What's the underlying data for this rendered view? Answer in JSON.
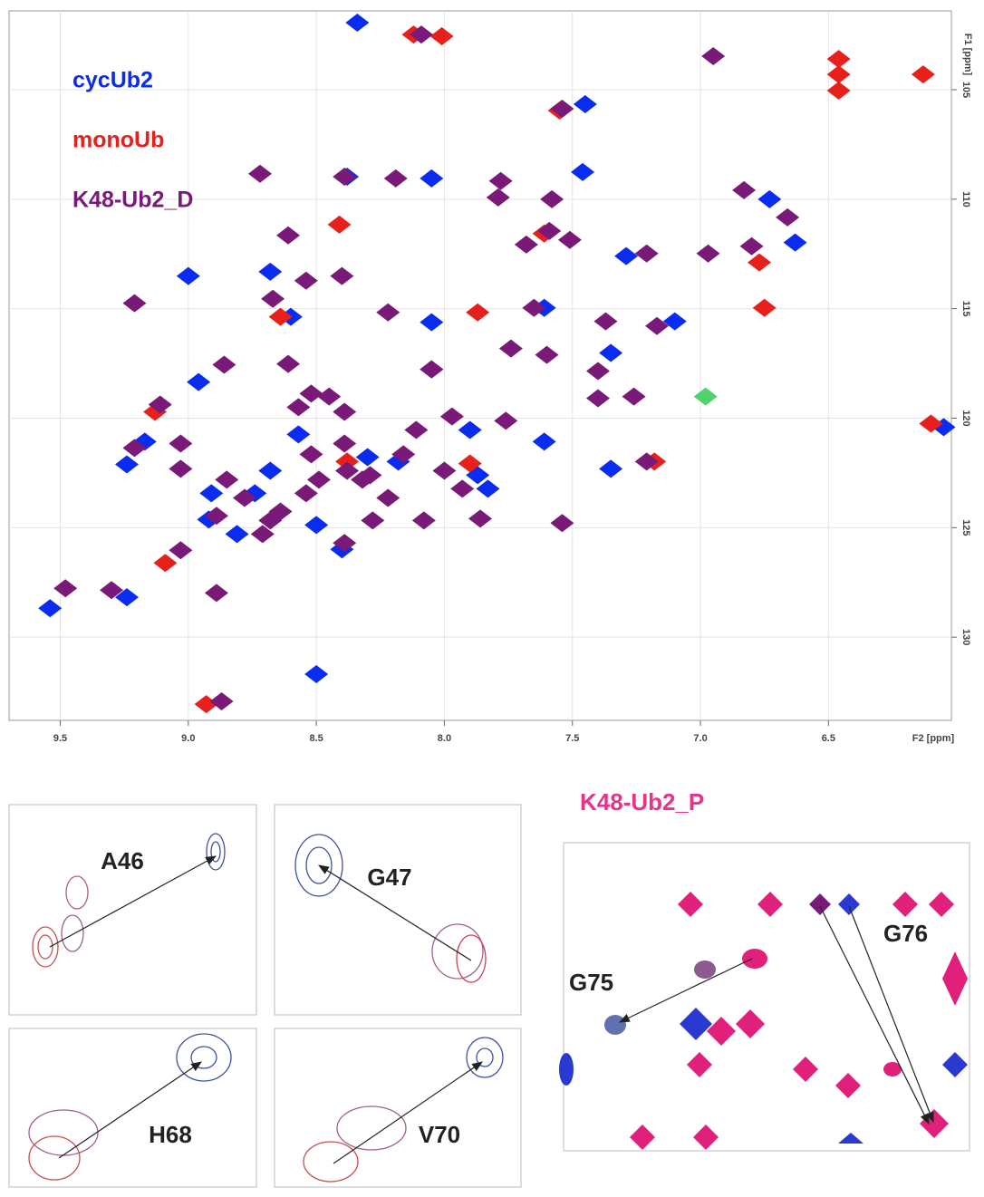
{
  "chart_data": {
    "type": "scatter",
    "x_label": "F2 [ppm]",
    "y_label": "F1 [ppm]",
    "xlim": [
      9.7,
      6.02
    ],
    "ylim": [
      101.4,
      133.8
    ],
    "xticks": [
      9.5,
      {
        "value": 9,
        "label": "9.0"
      },
      8.5,
      {
        "value": 8,
        "label": "8.0"
      },
      7.5,
      {
        "value": 7,
        "label": "7.0"
      },
      6.5
    ],
    "yticks": [
      105,
      110,
      115,
      120,
      125,
      130
    ],
    "grid": true,
    "legend": "top-left",
    "series": [
      {
        "name": "cycUb2",
        "color": "#0a2cf0",
        "x": [
          8.34,
          9.54,
          9.24,
          9.0,
          8.96,
          8.91,
          8.92,
          8.81,
          8.74,
          8.68,
          8.6,
          8.5,
          8.4,
          8.38,
          8.05,
          8.05,
          8.05,
          7.9,
          7.87,
          7.83,
          7.46,
          7.45,
          7.61,
          7.35,
          7.29,
          7.1,
          7.35,
          7.61,
          9.24,
          9.17,
          8.68,
          8.57,
          8.5,
          8.3,
          8.18,
          6.73,
          6.63,
          6.05
        ],
        "values": [
          101.94,
          128.68,
          128.18,
          113.51,
          118.35,
          123.43,
          124.63,
          125.29,
          123.43,
          113.31,
          115.37,
          131.69,
          125.99,
          108.97,
          109.05,
          115.62,
          117.77,
          120.54,
          122.6,
          123.22,
          108.76,
          105.66,
          114.96,
          117.02,
          112.6,
          115.58,
          122.31,
          121.07,
          122.11,
          121.07,
          122.4,
          120.74,
          124.88,
          121.78,
          121.98,
          110.0,
          111.98,
          120.41
        ]
      },
      {
        "name": "monoUb",
        "color": "#e8201c",
        "x": [
          8.41,
          7.87,
          9.09,
          8.93,
          8.12,
          8.01,
          7.55,
          6.46,
          6.46,
          6.46,
          6.13,
          8.38,
          7.9,
          8.64,
          9.13,
          6.77,
          6.75,
          7.61,
          7.18,
          6.1
        ],
        "values": [
          111.16,
          115.17,
          126.61,
          133.06,
          102.48,
          102.56,
          105.95,
          103.6,
          104.3,
          105.04,
          104.3,
          121.98,
          122.07,
          115.37,
          119.71,
          112.89,
          114.96,
          111.57,
          121.98,
          120.25
        ]
      },
      {
        "name": "K48-Ub2_D",
        "color": "#7a1a78",
        "x": [
          8.09,
          6.95,
          7.54,
          8.72,
          8.39,
          8.19,
          7.78,
          7.79,
          7.58,
          7.59,
          7.68,
          7.51,
          8.61,
          8.4,
          8.54,
          8.67,
          9.21,
          8.22,
          7.65,
          7.37,
          7.17,
          7.74,
          7.6,
          8.86,
          8.61,
          8.05,
          7.4,
          8.52,
          8.45,
          9.11,
          9.03,
          9.21,
          9.03,
          8.85,
          8.89,
          8.78,
          8.64,
          8.54,
          8.52,
          8.39,
          8.32,
          8.22,
          8.11,
          7.97,
          8.0,
          7.93,
          7.76,
          8.71,
          8.68,
          8.39,
          8.28,
          8.08,
          7.86,
          7.54,
          9.03,
          9.48,
          9.3,
          8.89,
          8.87,
          6.83,
          6.8,
          6.97,
          6.66,
          7.21,
          7.4,
          7.26,
          7.21,
          8.39,
          8.57,
          8.16,
          8.29,
          8.49,
          8.38
        ],
        "values": [
          102.48,
          103.47,
          105.87,
          108.84,
          108.97,
          109.05,
          109.17,
          109.92,
          110.0,
          111.45,
          112.07,
          111.86,
          111.65,
          113.51,
          113.72,
          114.55,
          114.75,
          115.17,
          114.96,
          115.58,
          115.79,
          116.82,
          117.11,
          117.56,
          117.52,
          117.77,
          117.85,
          118.88,
          119.01,
          119.38,
          121.16,
          121.36,
          122.31,
          122.81,
          124.46,
          123.64,
          124.26,
          123.43,
          121.65,
          121.16,
          122.81,
          123.64,
          120.54,
          119.92,
          122.4,
          123.22,
          120.12,
          125.29,
          124.67,
          125.7,
          124.67,
          124.67,
          124.59,
          124.79,
          126.03,
          127.77,
          127.85,
          127.98,
          132.93,
          109.59,
          112.15,
          112.48,
          110.83,
          112.48,
          119.09,
          119.01,
          121.98,
          119.71,
          119.5,
          121.65,
          122.6,
          122.81,
          122.4
        ]
      },
      {
        "color": "#4fd36a",
        "x": [
          6.98
        ],
        "values": [
          119.01
        ]
      }
    ]
  },
  "insets": {
    "labels": [
      "A46",
      "G47",
      "H68",
      "V70"
    ]
  },
  "zoom_panel": {
    "title": "K48-Ub2_P",
    "labels": [
      "G75",
      "G76"
    ]
  }
}
